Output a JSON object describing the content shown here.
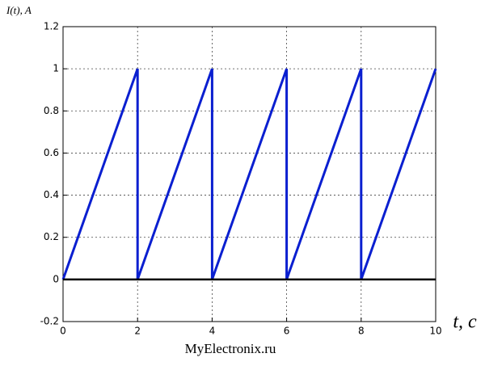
{
  "chart_data": {
    "type": "line",
    "y_label": "I(t), A",
    "x_label": "t, c",
    "watermark": "MyElectronix.ru",
    "series": [
      {
        "color": "#0a1fd0",
        "x": [
          0,
          2,
          2,
          4,
          4,
          6,
          6,
          8,
          8,
          10
        ],
        "values": [
          0,
          1,
          0,
          1,
          0,
          1,
          0,
          1,
          0,
          1
        ]
      },
      {
        "color": "#000000",
        "x": [
          0,
          10
        ],
        "values": [
          0,
          0
        ]
      }
    ],
    "xlim": [
      0,
      10
    ],
    "xticks": [
      0,
      2,
      4,
      6,
      8,
      10
    ],
    "ylim": [
      -0.2,
      1.2
    ],
    "yticks": [
      -0.2,
      0,
      0.2,
      0.4,
      0.6,
      0.8,
      1,
      1.2
    ],
    "grid": true
  }
}
